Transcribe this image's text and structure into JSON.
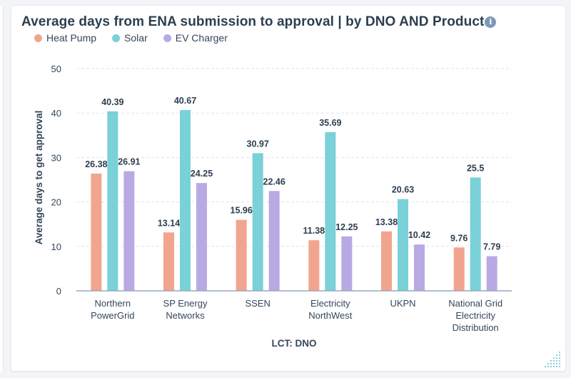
{
  "chart_data": {
    "type": "bar",
    "title": "Average days from ENA submission to approval | by DNO AND Product",
    "xlabel": "LCT: DNO",
    "ylabel": "Average days to get approval",
    "ylim": [
      0,
      50
    ],
    "yticks": [
      0,
      10,
      20,
      30,
      40,
      50
    ],
    "grid": true,
    "legend_position": "top-left",
    "categories": [
      [
        "Northern",
        "PowerGrid"
      ],
      [
        "SP Energy",
        "Networks"
      ],
      [
        "SSEN"
      ],
      [
        "Electricity",
        "NorthWest"
      ],
      [
        "UKPN"
      ],
      [
        "National Grid",
        "Electricity",
        "Distribution"
      ]
    ],
    "series": [
      {
        "name": "Heat Pump",
        "color": "#f2a58e",
        "values": [
          26.38,
          13.14,
          15.96,
          11.38,
          13.38,
          9.76
        ]
      },
      {
        "name": "Solar",
        "color": "#7ad1d8",
        "values": [
          40.39,
          40.67,
          30.97,
          35.69,
          20.63,
          25.5
        ]
      },
      {
        "name": "EV Charger",
        "color": "#b9a9e3",
        "values": [
          26.91,
          24.25,
          22.46,
          12.25,
          10.42,
          7.79
        ]
      }
    ]
  },
  "header": {
    "info_icon": "info-icon"
  }
}
